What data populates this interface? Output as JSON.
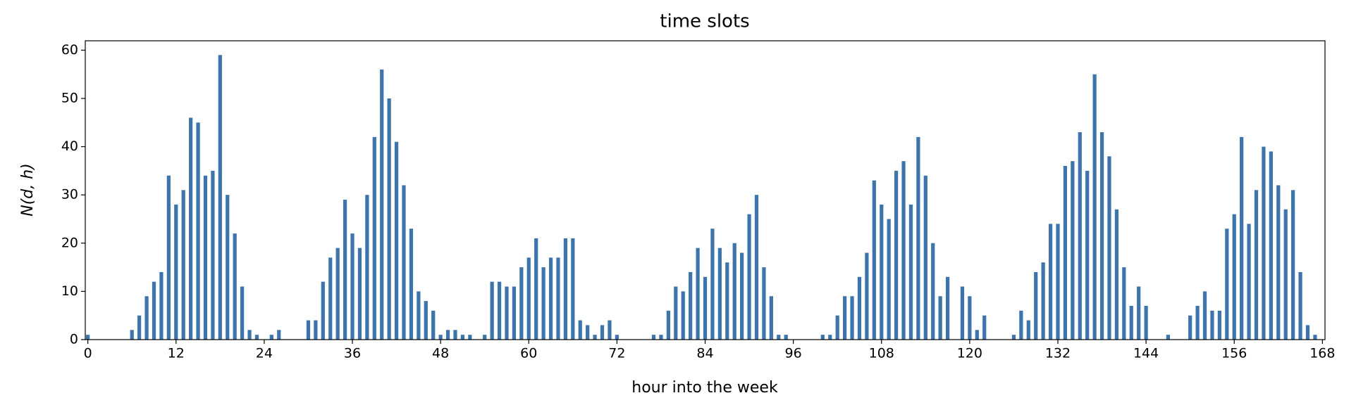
{
  "chart_data": {
    "type": "bar",
    "title": "time slots",
    "xlabel": "hour into the week",
    "ylabel": "N(d, h)",
    "x": [
      0,
      1,
      2,
      3,
      4,
      5,
      6,
      7,
      8,
      9,
      10,
      11,
      12,
      13,
      14,
      15,
      16,
      17,
      18,
      19,
      20,
      21,
      22,
      23,
      24,
      25,
      26,
      27,
      28,
      29,
      30,
      31,
      32,
      33,
      34,
      35,
      36,
      37,
      38,
      39,
      40,
      41,
      42,
      43,
      44,
      45,
      46,
      47,
      48,
      49,
      50,
      51,
      52,
      53,
      54,
      55,
      56,
      57,
      58,
      59,
      60,
      61,
      62,
      63,
      64,
      65,
      66,
      67,
      68,
      69,
      70,
      71,
      72,
      73,
      74,
      75,
      76,
      77,
      78,
      79,
      80,
      81,
      82,
      83,
      84,
      85,
      86,
      87,
      88,
      89,
      90,
      91,
      92,
      93,
      94,
      95,
      96,
      97,
      98,
      99,
      100,
      101,
      102,
      103,
      104,
      105,
      106,
      107,
      108,
      109,
      110,
      111,
      112,
      113,
      114,
      115,
      116,
      117,
      118,
      119,
      120,
      121,
      122,
      123,
      124,
      125,
      126,
      127,
      128,
      129,
      130,
      131,
      132,
      133,
      134,
      135,
      136,
      137,
      138,
      139,
      140,
      141,
      142,
      143,
      144,
      145,
      146,
      147,
      148,
      149,
      150,
      151,
      152,
      153,
      154,
      155,
      156,
      157,
      158,
      159,
      160,
      161,
      162,
      163,
      164,
      165,
      166,
      167
    ],
    "values": [
      1,
      0,
      0,
      0,
      0,
      0,
      2,
      5,
      9,
      12,
      14,
      34,
      28,
      31,
      46,
      45,
      34,
      35,
      59,
      30,
      22,
      11,
      2,
      1,
      0,
      1,
      2,
      0,
      0,
      0,
      4,
      4,
      12,
      17,
      19,
      29,
      22,
      19,
      30,
      42,
      56,
      50,
      41,
      32,
      23,
      10,
      8,
      6,
      1,
      2,
      2,
      1,
      1,
      0,
      1,
      12,
      12,
      11,
      11,
      15,
      17,
      21,
      15,
      17,
      17,
      21,
      21,
      4,
      3,
      1,
      3,
      4,
      1,
      0,
      0,
      0,
      0,
      1,
      1,
      6,
      11,
      10,
      14,
      19,
      13,
      23,
      19,
      16,
      20,
      18,
      26,
      30,
      15,
      9,
      1,
      1,
      0,
      0,
      0,
      0,
      1,
      1,
      5,
      9,
      9,
      13,
      18,
      33,
      28,
      25,
      35,
      37,
      28,
      42,
      34,
      20,
      9,
      13,
      0,
      11,
      9,
      2,
      5,
      0,
      0,
      0,
      1,
      6,
      4,
      14,
      16,
      24,
      24,
      36,
      37,
      43,
      35,
      55,
      43,
      38,
      27,
      15,
      7,
      11,
      7,
      0,
      0,
      1,
      0,
      0,
      5,
      7,
      10,
      6,
      6,
      23,
      26,
      42,
      24,
      31,
      40,
      39,
      32,
      27,
      31,
      14,
      3,
      1
    ],
    "bar_width": 0.5,
    "color": "#3b75af",
    "xlim": [
      -0.35,
      168.35
    ],
    "xticks": [
      0,
      12,
      24,
      36,
      48,
      60,
      72,
      84,
      96,
      108,
      120,
      132,
      144,
      156,
      168
    ],
    "ylim": [
      0,
      61.95
    ],
    "yticks": [
      0,
      10,
      20,
      30,
      40,
      50,
      60
    ]
  }
}
